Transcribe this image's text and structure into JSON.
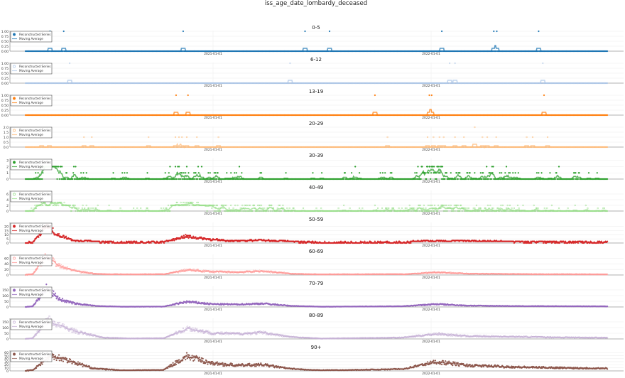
{
  "chart_data": {
    "type": "scatter",
    "title": "iss_age_date_lombardy_deceased",
    "x_range": [
      "2020-01-26",
      "2022-11-20"
    ],
    "x_ticks": [
      "2021-01-01",
      "2022-01-01"
    ],
    "series_start": "2020-02-22",
    "series_end": "2022-10-23",
    "legend": {
      "position": "top-left",
      "entries": [
        "Reconstructed Series",
        "Moving Average"
      ]
    },
    "grid": true,
    "panels": [
      {
        "title": "0-5",
        "color": "#1f77b4",
        "filled": true,
        "yticks": [
          "0.00",
          "0.25",
          "0.50",
          "0.75",
          "1.00"
        ],
        "ylim": [
          0,
          1.0
        ],
        "events": [
          [
            "2020-04-03",
            1
          ],
          [
            "2020-04-26",
            1
          ],
          [
            "2020-11-12",
            1
          ],
          [
            "2021-06-04",
            1
          ],
          [
            "2021-07-15",
            1
          ],
          [
            "2022-01-19",
            1
          ],
          [
            "2022-04-16",
            1
          ],
          [
            "2022-04-21",
            1
          ],
          [
            "2022-06-30",
            1
          ]
        ]
      },
      {
        "title": "6-12",
        "color": "#aec7e8",
        "filled": false,
        "yticks": [
          "0.00",
          "0.25",
          "0.50",
          "0.75",
          "1.00"
        ],
        "ylim": [
          0,
          1.0
        ],
        "events": [
          [
            "2020-05-06",
            1
          ],
          [
            "2021-05-10",
            1
          ],
          [
            "2022-02-01",
            1
          ],
          [
            "2022-02-10",
            1
          ],
          [
            "2022-07-07",
            1
          ]
        ]
      },
      {
        "title": "13-19",
        "color": "#ff7f0e",
        "filled": true,
        "yticks": [
          "0.00",
          "0.25",
          "0.50",
          "0.75",
          "1.00"
        ],
        "ylim": [
          0,
          1.0
        ],
        "events": [
          [
            "2020-10-31",
            1
          ],
          [
            "2020-11-20",
            1
          ],
          [
            "2021-09-29",
            1
          ],
          [
            "2021-12-29",
            1
          ],
          [
            "2022-01-02",
            1
          ],
          [
            "2022-07-09",
            1
          ]
        ]
      },
      {
        "title": "20-29",
        "color": "#ffbb78",
        "filled": false,
        "yticks": [
          "0.0",
          "0.5",
          "1.0",
          "1.5",
          "2.0"
        ],
        "ylim": [
          0,
          2.0
        ],
        "events": [
          [
            "2020-03-20",
            1
          ],
          [
            "2020-04-02",
            1
          ],
          [
            "2020-05-30",
            1
          ],
          [
            "2020-06-12",
            1
          ],
          [
            "2020-09-15",
            1
          ],
          [
            "2020-10-30",
            1
          ],
          [
            "2020-11-05",
            1
          ],
          [
            "2020-11-10",
            1
          ],
          [
            "2020-11-18",
            1
          ],
          [
            "2020-12-05",
            1
          ],
          [
            "2021-01-10",
            1
          ],
          [
            "2021-10-20",
            1
          ],
          [
            "2021-12-26",
            1
          ],
          [
            "2022-01-05",
            1
          ],
          [
            "2022-01-15",
            1
          ],
          [
            "2022-01-22",
            1
          ],
          [
            "2022-02-10",
            1
          ],
          [
            "2022-02-25",
            1
          ],
          [
            "2022-03-15",
            2
          ],
          [
            "2022-03-28",
            1
          ],
          [
            "2022-04-05",
            1
          ],
          [
            "2022-04-20",
            1
          ],
          [
            "2022-06-10",
            1
          ],
          [
            "2022-06-20",
            1
          ],
          [
            "2022-07-15",
            1
          ]
        ]
      },
      {
        "title": "30-39",
        "color": "#2ca02c",
        "filled": true,
        "yticks": [
          "0",
          "1",
          "2",
          "3"
        ],
        "ylim": [
          0,
          3.2
        ],
        "ma": [
          [
            "2020-02-22",
            0
          ],
          [
            "2020-03-10",
            0.2
          ],
          [
            "2020-03-25",
            1.0
          ],
          [
            "2020-04-15",
            0.8
          ],
          [
            "2020-05-01",
            0.2
          ],
          [
            "2020-06-01",
            0.05
          ],
          [
            "2020-10-01",
            0.05
          ],
          [
            "2020-10-25",
            0.3
          ],
          [
            "2020-11-15",
            0.5
          ],
          [
            "2020-12-15",
            0.2
          ],
          [
            "2021-02-01",
            0.1
          ],
          [
            "2021-04-01",
            0.15
          ],
          [
            "2021-06-01",
            0.03
          ],
          [
            "2021-12-01",
            0.1
          ],
          [
            "2022-01-01",
            0.8
          ],
          [
            "2022-01-20",
            0.6
          ],
          [
            "2022-02-15",
            0.3
          ],
          [
            "2022-04-01",
            0.3
          ],
          [
            "2022-06-01",
            0.1
          ],
          [
            "2022-10-23",
            0.05
          ]
        ]
      },
      {
        "title": "40-49",
        "color": "#98df8a",
        "filled": false,
        "yticks": [
          "0",
          "2",
          "4",
          "6"
        ],
        "ylim": [
          0,
          7
        ],
        "ma": [
          [
            "2020-02-22",
            0
          ],
          [
            "2020-03-10",
            0.5
          ],
          [
            "2020-03-28",
            2.2
          ],
          [
            "2020-04-20",
            1.5
          ],
          [
            "2020-05-20",
            0.4
          ],
          [
            "2020-07-01",
            0.1
          ],
          [
            "2020-10-05",
            0.1
          ],
          [
            "2020-11-01",
            1.2
          ],
          [
            "2020-11-25",
            1.5
          ],
          [
            "2020-12-31",
            0.8
          ],
          [
            "2021-02-01",
            0.4
          ],
          [
            "2021-03-25",
            0.6
          ],
          [
            "2021-05-15",
            0.2
          ],
          [
            "2021-07-01",
            0.05
          ],
          [
            "2021-12-01",
            0.2
          ],
          [
            "2022-01-15",
            0.8
          ],
          [
            "2022-03-01",
            0.4
          ],
          [
            "2022-06-01",
            0.2
          ],
          [
            "2022-10-23",
            0.1
          ]
        ]
      },
      {
        "title": "50-59",
        "color": "#d62728",
        "filled": true,
        "yticks": [
          "0",
          "5",
          "10",
          "15",
          "20"
        ],
        "ylim": [
          0,
          24
        ],
        "ma": [
          [
            "2020-02-22",
            0
          ],
          [
            "2020-03-05",
            0.5
          ],
          [
            "2020-03-28",
            21
          ],
          [
            "2020-04-15",
            10
          ],
          [
            "2020-05-15",
            3
          ],
          [
            "2020-06-15",
            1
          ],
          [
            "2020-08-01",
            0.3
          ],
          [
            "2020-10-10",
            0.6
          ],
          [
            "2020-11-15",
            8
          ],
          [
            "2020-12-31",
            4
          ],
          [
            "2021-02-10",
            2.5
          ],
          [
            "2021-03-25",
            3.5
          ],
          [
            "2021-05-10",
            1
          ],
          [
            "2021-07-01",
            0.2
          ],
          [
            "2021-11-15",
            0.4
          ],
          [
            "2022-01-10",
            2.5
          ],
          [
            "2022-03-01",
            1.5
          ],
          [
            "2022-06-01",
            0.8
          ],
          [
            "2022-10-23",
            0.5
          ]
        ]
      },
      {
        "title": "60-69",
        "color": "#ff9896",
        "filled": false,
        "yticks": [
          "0",
          "20",
          "40",
          "60"
        ],
        "ylim": [
          0,
          72
        ],
        "ma": [
          [
            "2020-02-22",
            0
          ],
          [
            "2020-03-05",
            2
          ],
          [
            "2020-03-28",
            68
          ],
          [
            "2020-04-20",
            30
          ],
          [
            "2020-05-20",
            12
          ],
          [
            "2020-06-20",
            4
          ],
          [
            "2020-08-01",
            1
          ],
          [
            "2020-10-10",
            2
          ],
          [
            "2020-11-18",
            18
          ],
          [
            "2020-12-31",
            12
          ],
          [
            "2021-02-10",
            10
          ],
          [
            "2021-03-25",
            14
          ],
          [
            "2021-05-10",
            5
          ],
          [
            "2021-07-01",
            1
          ],
          [
            "2021-11-15",
            2
          ],
          [
            "2022-01-10",
            10
          ],
          [
            "2022-03-01",
            5
          ],
          [
            "2022-06-01",
            3
          ],
          [
            "2022-10-23",
            2
          ]
        ]
      },
      {
        "title": "70-79",
        "color": "#9467bd",
        "filled": true,
        "yticks": [
          "0",
          "50",
          "100",
          "150"
        ],
        "ylim": [
          0,
          175
        ],
        "ma": [
          [
            "2020-02-22",
            0
          ],
          [
            "2020-03-05",
            5
          ],
          [
            "2020-03-28",
            165
          ],
          [
            "2020-04-20",
            65
          ],
          [
            "2020-05-15",
            30
          ],
          [
            "2020-06-20",
            8
          ],
          [
            "2020-08-01",
            2
          ],
          [
            "2020-10-10",
            3
          ],
          [
            "2020-11-18",
            45
          ],
          [
            "2020-12-31",
            25
          ],
          [
            "2021-02-10",
            22
          ],
          [
            "2021-03-25",
            30
          ],
          [
            "2021-05-10",
            10
          ],
          [
            "2021-07-01",
            2
          ],
          [
            "2021-11-15",
            6
          ],
          [
            "2022-01-10",
            25
          ],
          [
            "2022-03-01",
            12
          ],
          [
            "2022-06-01",
            7
          ],
          [
            "2022-10-23",
            5
          ]
        ]
      },
      {
        "title": "80-89",
        "color": "#c5b0d5",
        "filled": false,
        "yticks": [
          "0",
          "50",
          "100",
          "150"
        ],
        "ylim": [
          0,
          175
        ],
        "ma": [
          [
            "2020-02-22",
            0
          ],
          [
            "2020-03-05",
            5
          ],
          [
            "2020-03-30",
            170
          ],
          [
            "2020-04-20",
            115
          ],
          [
            "2020-05-20",
            60
          ],
          [
            "2020-07-01",
            12
          ],
          [
            "2020-08-15",
            4
          ],
          [
            "2020-10-10",
            6
          ],
          [
            "2020-11-20",
            95
          ],
          [
            "2020-12-31",
            50
          ],
          [
            "2021-02-10",
            45
          ],
          [
            "2021-03-25",
            55
          ],
          [
            "2021-05-10",
            18
          ],
          [
            "2021-07-01",
            3
          ],
          [
            "2021-11-15",
            12
          ],
          [
            "2022-01-10",
            45
          ],
          [
            "2022-03-01",
            25
          ],
          [
            "2022-07-15",
            15
          ],
          [
            "2022-10-23",
            10
          ]
        ]
      },
      {
        "title": "90+",
        "color": "#8c564b",
        "filled": true,
        "yticks": [
          "0",
          "10",
          "20",
          "30",
          "40",
          "50",
          "60"
        ],
        "ylim": [
          0,
          65
        ],
        "ma": [
          [
            "2020-02-22",
            0
          ],
          [
            "2020-03-05",
            2
          ],
          [
            "2020-03-25",
            35
          ],
          [
            "2020-04-08",
            50
          ],
          [
            "2020-05-10",
            30
          ],
          [
            "2020-06-15",
            8
          ],
          [
            "2020-08-01",
            2
          ],
          [
            "2020-10-10",
            3
          ],
          [
            "2020-11-18",
            48
          ],
          [
            "2020-12-31",
            25
          ],
          [
            "2021-02-10",
            18
          ],
          [
            "2021-03-25",
            20
          ],
          [
            "2021-05-10",
            7
          ],
          [
            "2021-07-01",
            1
          ],
          [
            "2021-11-15",
            6
          ],
          [
            "2022-01-10",
            30
          ],
          [
            "2022-03-01",
            18
          ],
          [
            "2022-06-01",
            12
          ],
          [
            "2022-10-23",
            8
          ]
        ]
      }
    ]
  }
}
